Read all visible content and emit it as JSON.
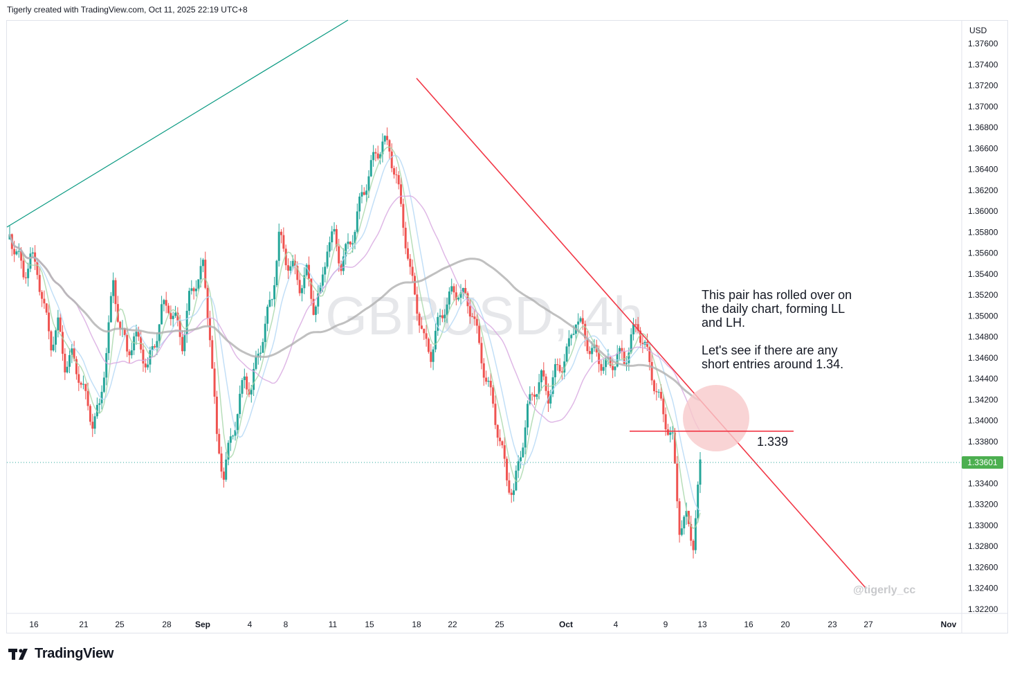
{
  "header": {
    "attribution": "Tigerly created with TradingView.com, Oct 11, 2025 22:19 UTC+8"
  },
  "footer": {
    "brand": "TradingView"
  },
  "colors": {
    "up": "#26a69a",
    "down": "#ef5350",
    "trendline": "#f23645",
    "ascending_line": "#089981",
    "zone_fill": "#f7c9cb"
  },
  "chart_data": {
    "type": "candlestick",
    "symbol_watermark": "GBPUSD, 4h",
    "currency": "USD",
    "current_price": "1.33601",
    "y_axis": {
      "ylim": [
        1.321,
        1.3785
      ],
      "ticks": [
        "1.37600",
        "1.37400",
        "1.37200",
        "1.37000",
        "1.36800",
        "1.36600",
        "1.36400",
        "1.36200",
        "1.36000",
        "1.35800",
        "1.35600",
        "1.35400",
        "1.35200",
        "1.35000",
        "1.34800",
        "1.34600",
        "1.34400",
        "1.34200",
        "1.34000",
        "1.33800",
        "1.33600",
        "1.33400",
        "1.33200",
        "1.33000",
        "1.32800",
        "1.32600",
        "1.32400",
        "1.32200"
      ]
    },
    "x_axis": {
      "labels": [
        "16",
        "21",
        "25",
        "28",
        "Sep",
        "4",
        "8",
        "11",
        "15",
        "18",
        "22",
        "25",
        "Oct",
        "4",
        "9",
        "13",
        "16",
        "20",
        "23",
        "27",
        "Nov"
      ]
    },
    "series": [
      {
        "name": "GBPUSD",
        "close_path": [
          1.3578,
          1.356,
          1.354,
          1.3555,
          1.3545,
          1.3505,
          1.3475,
          1.349,
          1.3455,
          1.346,
          1.3445,
          1.342,
          1.34,
          1.341,
          1.347,
          1.353,
          1.349,
          1.3465,
          1.348,
          1.347,
          1.345,
          1.3475,
          1.3505,
          1.351,
          1.3495,
          1.3475,
          1.3515,
          1.3535,
          1.3545,
          1.3485,
          1.338,
          1.335,
          1.338,
          1.341,
          1.344,
          1.343,
          1.3465,
          1.349,
          1.352,
          1.3575,
          1.3555,
          1.3545,
          1.353,
          1.354,
          1.351,
          1.352,
          1.357,
          1.3575,
          1.355,
          1.3565,
          1.3585,
          1.3615,
          1.3635,
          1.3655,
          1.3665,
          1.366,
          1.363,
          1.359,
          1.354,
          1.351,
          1.3475,
          1.3465,
          1.349,
          1.351,
          1.352,
          1.3525,
          1.3515,
          1.3505,
          1.347,
          1.344,
          1.3415,
          1.338,
          1.3345,
          1.333,
          1.337,
          1.341,
          1.343,
          1.344,
          1.3425,
          1.3445,
          1.3455,
          1.347,
          1.35,
          1.3485,
          1.347,
          1.346,
          1.3455,
          1.345,
          1.3465,
          1.3455,
          1.348,
          1.349,
          1.347,
          1.3445,
          1.342,
          1.34,
          1.338,
          1.33,
          1.3305,
          1.3285,
          1.3355
        ]
      }
    ],
    "annotations": [
      {
        "text": "This pair has rolled over on\nthe daily chart, forming LL\nand LH.\n\nLet's see if there are any\nshort entries around 1.34."
      },
      {
        "text": "1.339",
        "price": 1.339
      },
      {
        "text": "@tigerly_cc"
      }
    ]
  }
}
